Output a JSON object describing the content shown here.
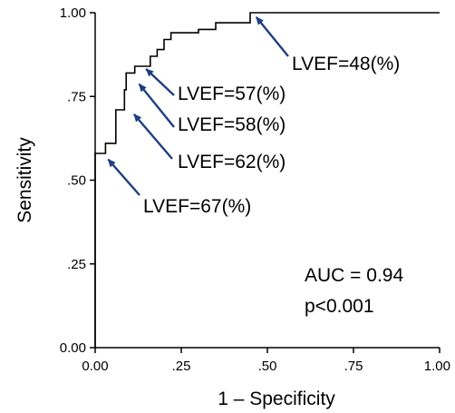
{
  "chart_data": {
    "type": "line",
    "title": "",
    "xlabel": "1 – Specificity",
    "ylabel": "Sensitivity",
    "xlim": [
      0,
      1
    ],
    "ylim": [
      0,
      1
    ],
    "x_ticks": [
      {
        "value": 0.0,
        "label": "0.00"
      },
      {
        "value": 0.25,
        "label": ".25"
      },
      {
        "value": 0.5,
        "label": ".50"
      },
      {
        "value": 0.75,
        "label": ".75"
      },
      {
        "value": 1.0,
        "label": "1.00"
      }
    ],
    "y_ticks": [
      {
        "value": 0.0,
        "label": "0.00"
      },
      {
        "value": 0.25,
        "label": ".25"
      },
      {
        "value": 0.5,
        "label": ".50"
      },
      {
        "value": 0.75,
        "label": ".75"
      },
      {
        "value": 1.0,
        "label": "1.00"
      }
    ],
    "grid": false,
    "line_color": "#000000",
    "arrow_color": "#1f3f7f",
    "series": [
      {
        "x": [
          0.0,
          0.0,
          0.03,
          0.03,
          0.06,
          0.06,
          0.085,
          0.085,
          0.09,
          0.09,
          0.115,
          0.115,
          0.16,
          0.16,
          0.18,
          0.18,
          0.2,
          0.2,
          0.22,
          0.22,
          0.3,
          0.3,
          0.35,
          0.35,
          0.45,
          0.45,
          1.0
        ],
        "y": [
          0.0,
          0.58,
          0.58,
          0.61,
          0.61,
          0.71,
          0.71,
          0.77,
          0.77,
          0.82,
          0.82,
          0.84,
          0.84,
          0.87,
          0.87,
          0.89,
          0.89,
          0.92,
          0.92,
          0.94,
          0.94,
          0.95,
          0.95,
          0.97,
          0.97,
          1.0,
          1.0
        ]
      }
    ],
    "annotations": [
      {
        "label": "LVEF=48(%)",
        "point": [
          0.46,
          0.995
        ]
      },
      {
        "label": "LVEF=57(%)",
        "point": [
          0.14,
          0.84
        ]
      },
      {
        "label": "LVEF=58(%)",
        "point": [
          0.12,
          0.795
        ]
      },
      {
        "label": "LVEF=62(%)",
        "point": [
          0.105,
          0.705
        ]
      },
      {
        "label": "LVEF=67(%)",
        "point": [
          0.03,
          0.57
        ]
      }
    ],
    "stats": [
      "AUC = 0.94",
      "p<0.001"
    ]
  }
}
